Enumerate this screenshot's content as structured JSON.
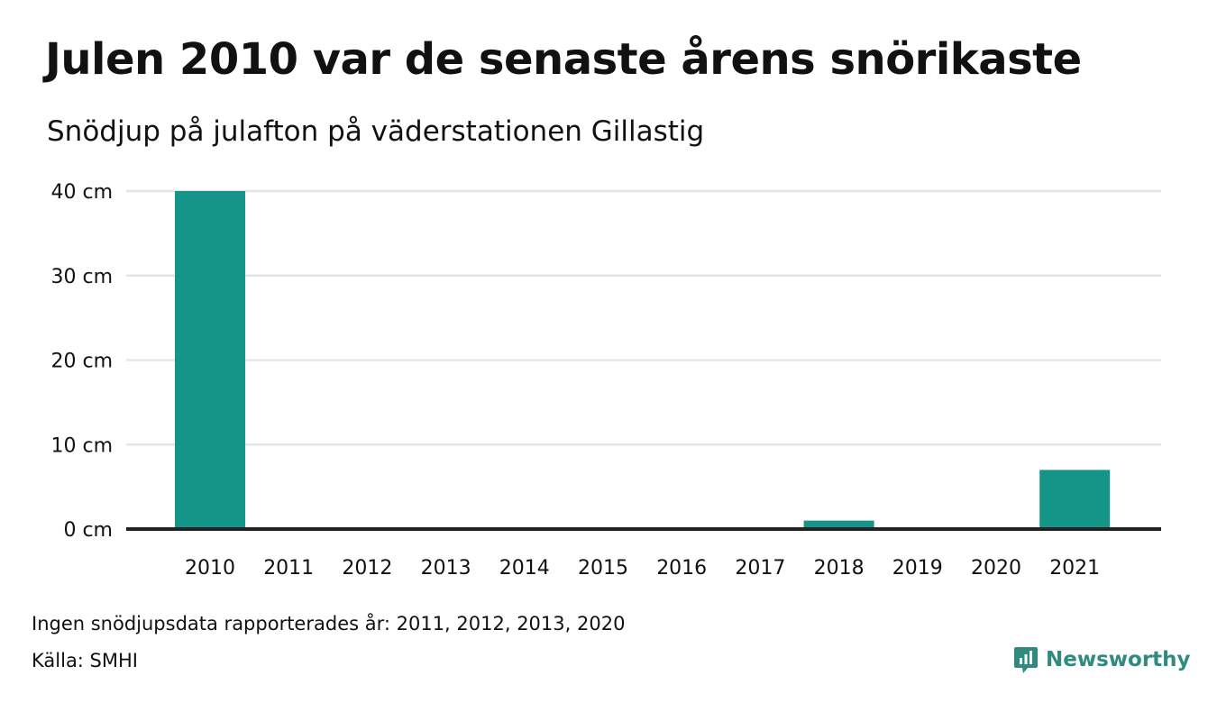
{
  "title": "Julen 2010 var de senaste årens snörikaste",
  "subtitle": "Snödjup på julafton på väderstationen Gillastig",
  "note": "Ingen snödjupsdata rapporterades år: 2011, 2012, 2013, 2020",
  "source": "Källa: SMHI",
  "brand": {
    "name": "Newsworthy",
    "icon": "newsworthy-logo-icon",
    "color": "#2e8b7e"
  },
  "colors": {
    "bar": "#149587",
    "grid": "#e5e5e5",
    "baseline": "#222222",
    "text": "#111111"
  },
  "chart_data": {
    "type": "bar",
    "title": "Julen 2010 var de senaste årens snörikaste",
    "subtitle": "Snödjup på julafton på väderstationen Gillastig",
    "categories": [
      "2010",
      "2011",
      "2012",
      "2013",
      "2014",
      "2015",
      "2016",
      "2017",
      "2018",
      "2019",
      "2020",
      "2021"
    ],
    "values": [
      40,
      null,
      null,
      null,
      0,
      0,
      0,
      0,
      1,
      0,
      null,
      7
    ],
    "ylim": [
      0,
      40
    ],
    "yticks": [
      0,
      10,
      20,
      30,
      40
    ],
    "ytick_labels": [
      "0 cm",
      "10 cm",
      "20 cm",
      "30 cm",
      "40 cm"
    ],
    "grid": true,
    "legend": "none"
  }
}
